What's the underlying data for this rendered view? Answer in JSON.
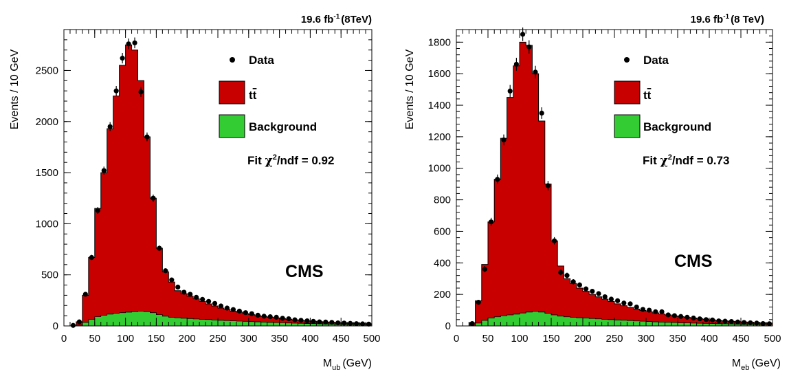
{
  "colors": {
    "ttbar": "#c90000",
    "background": "#33cc33",
    "data": "#000000",
    "frame": "#000000"
  },
  "chart_data": [
    {
      "type": "bar",
      "stacked_histogram": true,
      "bin_width": 10,
      "xlim": [
        0,
        500
      ],
      "ylim": [
        0,
        2900
      ],
      "yticks": [
        0,
        500,
        1000,
        1500,
        2000,
        2500
      ],
      "xticks": [
        0,
        50,
        100,
        150,
        200,
        250,
        300,
        350,
        400,
        450,
        500
      ],
      "ylabel": "Events / 10 GeV",
      "xlabel_main": "M",
      "xlabel_sub": "ub",
      "xlabel_unit": "(GeV)",
      "lumi_main": "19.6 fb",
      "lumi_sup": "-1",
      "lumi_energy": "(8TeV)",
      "legend": {
        "data": "Data",
        "ttbar_main": "t",
        "ttbar_bar": "t",
        "background": "Background"
      },
      "fit_main": "Fit ",
      "fit_chi": "χ",
      "fit_sup": "2",
      "fit_rest": "/ndf = 0.92",
      "cms_label": "CMS",
      "series": [
        {
          "name": "Background",
          "key": "background",
          "bin_starts": [
            20,
            30,
            40,
            50,
            60,
            70,
            80,
            90,
            100,
            110,
            120,
            130,
            140,
            150,
            160,
            170,
            180,
            190,
            200,
            210,
            220,
            230,
            240,
            250,
            260,
            270,
            280,
            290,
            300,
            310,
            320,
            330,
            340,
            350,
            360,
            370,
            380,
            390,
            400,
            410,
            420,
            430,
            440,
            450,
            460,
            470,
            480,
            490
          ],
          "values": [
            8,
            35,
            65,
            90,
            105,
            115,
            125,
            130,
            135,
            140,
            145,
            140,
            130,
            110,
            95,
            85,
            80,
            75,
            72,
            68,
            65,
            62,
            58,
            55,
            52,
            50,
            47,
            45,
            42,
            40,
            37,
            35,
            33,
            31,
            29,
            27,
            25,
            23,
            22,
            20,
            18,
            17,
            16,
            15,
            14,
            13,
            12,
            11
          ]
        },
        {
          "name": "tt̄ (stack total)",
          "key": "ttbar",
          "bin_starts": [
            20,
            30,
            40,
            50,
            60,
            70,
            80,
            90,
            100,
            110,
            120,
            130,
            140,
            150,
            160,
            170,
            180,
            190,
            200,
            210,
            220,
            230,
            240,
            250,
            260,
            270,
            280,
            290,
            300,
            310,
            320,
            330,
            340,
            350,
            360,
            370,
            380,
            390,
            400,
            410,
            420,
            430,
            440,
            450,
            460,
            470,
            480,
            490
          ],
          "values": [
            40,
            300,
            670,
            1150,
            1500,
            1930,
            2250,
            2550,
            2750,
            2700,
            2400,
            1850,
            1250,
            760,
            530,
            430,
            345,
            315,
            290,
            265,
            240,
            215,
            195,
            175,
            160,
            145,
            135,
            120,
            110,
            100,
            92,
            85,
            78,
            72,
            66,
            60,
            55,
            50,
            46,
            42,
            38,
            35,
            32,
            29,
            27,
            25,
            23,
            21
          ]
        },
        {
          "name": "Data",
          "key": "data",
          "x": [
            15,
            25,
            35,
            45,
            55,
            65,
            75,
            85,
            95,
            105,
            115,
            125,
            135,
            145,
            155,
            165,
            175,
            185,
            195,
            205,
            215,
            225,
            235,
            245,
            255,
            265,
            275,
            285,
            295,
            305,
            315,
            325,
            335,
            345,
            355,
            365,
            375,
            385,
            395,
            405,
            415,
            425,
            435,
            445,
            455,
            465,
            475,
            485,
            495
          ],
          "y": [
            5,
            40,
            310,
            670,
            1130,
            1520,
            1950,
            2300,
            2620,
            2760,
            2770,
            2290,
            1850,
            1250,
            760,
            540,
            450,
            380,
            330,
            310,
            280,
            260,
            240,
            220,
            195,
            175,
            160,
            145,
            130,
            120,
            105,
            95,
            90,
            85,
            75,
            70,
            60,
            55,
            50,
            45,
            40,
            38,
            35,
            30,
            28,
            25,
            22,
            20,
            18
          ]
        }
      ]
    },
    {
      "type": "bar",
      "stacked_histogram": true,
      "bin_width": 10,
      "xlim": [
        0,
        500
      ],
      "ylim": [
        0,
        1880
      ],
      "yticks": [
        0,
        200,
        400,
        600,
        800,
        1000,
        1200,
        1400,
        1600,
        1800
      ],
      "xticks": [
        0,
        50,
        100,
        150,
        200,
        250,
        300,
        350,
        400,
        450,
        500
      ],
      "ylabel": "Events / 10 GeV",
      "xlabel_main": "M",
      "xlabel_sub": "eb",
      "xlabel_unit": "(GeV)",
      "lumi_main": "19.6 fb",
      "lumi_sup": "-1",
      "lumi_energy": "(8 TeV)",
      "legend": {
        "data": "Data",
        "ttbar_main": "t",
        "ttbar_bar": "t",
        "background": "Background"
      },
      "fit_main": "Fit ",
      "fit_chi": "χ",
      "fit_sup": "2",
      "fit_rest": "/ndf = 0.73",
      "cms_label": "CMS",
      "series": [
        {
          "name": "Background",
          "key": "background",
          "bin_starts": [
            20,
            30,
            40,
            50,
            60,
            70,
            80,
            90,
            100,
            110,
            120,
            130,
            140,
            150,
            160,
            170,
            180,
            190,
            200,
            210,
            220,
            230,
            240,
            250,
            260,
            270,
            280,
            290,
            300,
            310,
            320,
            330,
            340,
            350,
            360,
            370,
            380,
            390,
            400,
            410,
            420,
            430,
            440,
            450,
            460,
            470,
            480,
            490
          ],
          "values": [
            5,
            18,
            35,
            50,
            58,
            65,
            70,
            75,
            82,
            88,
            92,
            88,
            80,
            70,
            62,
            58,
            55,
            52,
            50,
            47,
            45,
            42,
            40,
            38,
            36,
            34,
            32,
            30,
            28,
            26,
            24,
            23,
            22,
            20,
            19,
            18,
            17,
            16,
            15,
            14,
            13,
            12,
            11,
            10,
            10,
            9,
            9,
            8
          ]
        },
        {
          "name": "tt̄ (stack total)",
          "key": "ttbar",
          "bin_starts": [
            20,
            30,
            40,
            50,
            60,
            70,
            80,
            90,
            100,
            110,
            120,
            130,
            140,
            150,
            160,
            170,
            180,
            190,
            200,
            210,
            220,
            230,
            240,
            250,
            260,
            270,
            280,
            290,
            300,
            310,
            320,
            330,
            340,
            350,
            360,
            370,
            380,
            390,
            400,
            410,
            420,
            430,
            440,
            450,
            460,
            470,
            480,
            490
          ],
          "values": [
            20,
            160,
            390,
            660,
            930,
            1190,
            1450,
            1650,
            1800,
            1780,
            1600,
            1300,
            900,
            540,
            380,
            300,
            270,
            240,
            220,
            200,
            185,
            170,
            155,
            140,
            128,
            117,
            107,
            98,
            90,
            83,
            76,
            70,
            64,
            59,
            54,
            50,
            46,
            42,
            38,
            35,
            32,
            29,
            27,
            25,
            23,
            21,
            19,
            18
          ]
        },
        {
          "name": "Data",
          "key": "data",
          "x": [
            25,
            35,
            45,
            55,
            65,
            75,
            85,
            95,
            105,
            115,
            125,
            135,
            145,
            155,
            165,
            175,
            185,
            195,
            205,
            215,
            225,
            235,
            245,
            255,
            265,
            275,
            285,
            295,
            305,
            315,
            325,
            335,
            345,
            355,
            365,
            375,
            385,
            395,
            405,
            415,
            425,
            435,
            445,
            455,
            465,
            475,
            485,
            495
          ],
          "y": [
            15,
            150,
            360,
            660,
            930,
            1180,
            1490,
            1660,
            1850,
            1770,
            1610,
            1350,
            890,
            540,
            340,
            320,
            280,
            260,
            235,
            220,
            205,
            185,
            170,
            160,
            145,
            140,
            120,
            105,
            100,
            90,
            90,
            70,
            65,
            60,
            55,
            50,
            45,
            40,
            38,
            32,
            30,
            28,
            25,
            22,
            20,
            18,
            15,
            14
          ]
        }
      ]
    }
  ]
}
